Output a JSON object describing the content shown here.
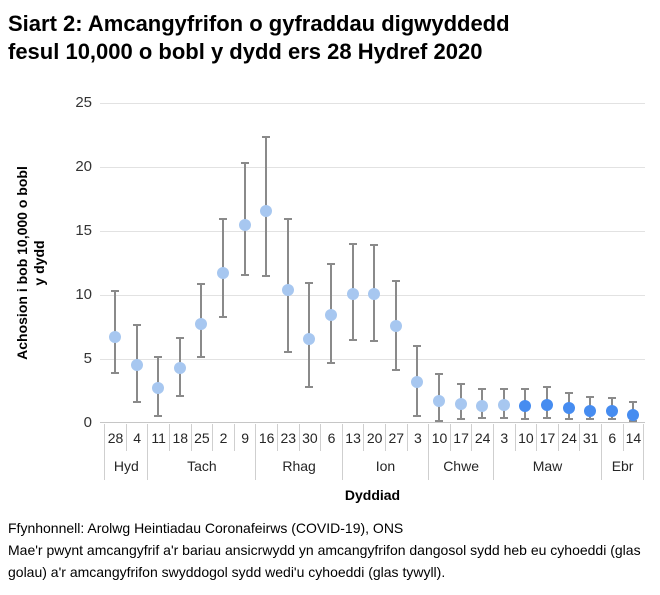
{
  "title": {
    "line1": "Siart 2: Amcangyfrifon o gyfraddau digwyddedd",
    "line2": "fesul 10,000 o bobl y dydd ers 28 Hydref 2020"
  },
  "y_axis_title": {
    "line1": "Achosion i bob 10,000 o bobl",
    "line2": "y dydd"
  },
  "x_axis_title": "Dyddiad",
  "footer": {
    "source": "Ffynhonnell: Arolwg Heintiadau Coronafeirws (COVID-19), ONS",
    "note": "Mae'r pwynt amcangyfrif a'r bariau ansicrwydd yn amcangyfrifon dangosol sydd heb eu cyhoeddi (glas golau) a'r amcangyfrifon swyddogol sydd wedi'u cyhoeddi (glas tywyll)."
  },
  "colors": {
    "provisional_light_blue": "#A7C7F0",
    "published_dark_blue": "#468CF0",
    "error_bar_gray": "#8A8A8A",
    "gridline_gray": "#E2E2E2",
    "axis_gray": "#C6C6C6"
  },
  "chart_data": {
    "type": "scatter",
    "title": "Siart 2: Amcangyfrifon o gyfraddau digwyddedd fesul 10,000 o bobl y dydd ers 28 Hydref 2020",
    "xlabel": "Dyddiad",
    "ylabel": "Achosion i bob 10,000 o bobl y dydd",
    "ylim": [
      0,
      25
    ],
    "yticks": [
      0,
      5,
      10,
      15,
      20,
      25
    ],
    "grid": true,
    "legend_position": "none",
    "categories": [
      "28",
      "4",
      "11",
      "18",
      "25",
      "2",
      "9",
      "16",
      "23",
      "30",
      "6",
      "13",
      "20",
      "27",
      "3",
      "10",
      "17",
      "24",
      "3",
      "10",
      "17",
      "24",
      "31",
      "6",
      "14"
    ],
    "month_groups": [
      {
        "label": "Hyd",
        "count": 2
      },
      {
        "label": "Tach",
        "count": 5
      },
      {
        "label": "Rhag",
        "count": 4
      },
      {
        "label": "Ion",
        "count": 4
      },
      {
        "label": "Chwe",
        "count": 3
      },
      {
        "label": "Maw",
        "count": 5
      },
      {
        "label": "Ebr",
        "count": 2
      }
    ],
    "points": [
      {
        "day": "28",
        "month": "Hyd",
        "est": 6.7,
        "lo": 3.8,
        "hi": 10.4,
        "published": false
      },
      {
        "day": "4",
        "month": "Hyd",
        "est": 4.5,
        "lo": 1.6,
        "hi": 7.7,
        "published": false
      },
      {
        "day": "11",
        "month": "Tach",
        "est": 2.7,
        "lo": 0.5,
        "hi": 5.2,
        "published": false
      },
      {
        "day": "18",
        "month": "Tach",
        "est": 4.3,
        "lo": 2.0,
        "hi": 6.7,
        "published": false
      },
      {
        "day": "25",
        "month": "Tach",
        "est": 7.7,
        "lo": 5.1,
        "hi": 10.9,
        "published": false
      },
      {
        "day": "2",
        "month": "Tach",
        "est": 11.7,
        "lo": 8.2,
        "hi": 16.0,
        "published": false
      },
      {
        "day": "9",
        "month": "Tach",
        "est": 15.5,
        "lo": 11.5,
        "hi": 20.4,
        "published": false
      },
      {
        "day": "16",
        "month": "Rhag",
        "est": 16.6,
        "lo": 11.4,
        "hi": 22.4,
        "published": false
      },
      {
        "day": "23",
        "month": "Rhag",
        "est": 10.4,
        "lo": 5.5,
        "hi": 16.0,
        "published": false
      },
      {
        "day": "30",
        "month": "Rhag",
        "est": 6.6,
        "lo": 2.7,
        "hi": 11.0,
        "published": false
      },
      {
        "day": "6",
        "month": "Rhag",
        "est": 8.4,
        "lo": 4.6,
        "hi": 12.5,
        "published": false
      },
      {
        "day": "13",
        "month": "Ion",
        "est": 10.1,
        "lo": 6.4,
        "hi": 14.1,
        "published": false
      },
      {
        "day": "20",
        "month": "Ion",
        "est": 10.1,
        "lo": 6.3,
        "hi": 14.0,
        "published": false
      },
      {
        "day": "27",
        "month": "Ion",
        "est": 7.6,
        "lo": 4.1,
        "hi": 11.2,
        "published": false
      },
      {
        "day": "3",
        "month": "Ion",
        "est": 3.2,
        "lo": 0.5,
        "hi": 6.1,
        "published": false
      },
      {
        "day": "10",
        "month": "Chwe",
        "est": 1.7,
        "lo": 0.1,
        "hi": 3.9,
        "published": false
      },
      {
        "day": "17",
        "month": "Chwe",
        "est": 1.5,
        "lo": 0.2,
        "hi": 3.1,
        "published": false
      },
      {
        "day": "24",
        "month": "Chwe",
        "est": 1.3,
        "lo": 0.3,
        "hi": 2.7,
        "published": false
      },
      {
        "day": "3",
        "month": "Maw",
        "est": 1.4,
        "lo": 0.3,
        "hi": 2.7,
        "published": false
      },
      {
        "day": "10",
        "month": "Maw",
        "est": 1.3,
        "lo": 0.2,
        "hi": 2.7,
        "published": true
      },
      {
        "day": "17",
        "month": "Maw",
        "est": 1.4,
        "lo": 0.3,
        "hi": 2.9,
        "published": true
      },
      {
        "day": "24",
        "month": "Maw",
        "est": 1.2,
        "lo": 0.2,
        "hi": 2.4,
        "published": true
      },
      {
        "day": "31",
        "month": "Maw",
        "est": 0.9,
        "lo": 0.2,
        "hi": 2.1,
        "published": true
      },
      {
        "day": "6",
        "month": "Ebr",
        "est": 0.9,
        "lo": 0.2,
        "hi": 2.0,
        "published": true
      },
      {
        "day": "14",
        "month": "Ebr",
        "est": 0.6,
        "lo": 0.1,
        "hi": 1.7,
        "published": true
      }
    ]
  }
}
